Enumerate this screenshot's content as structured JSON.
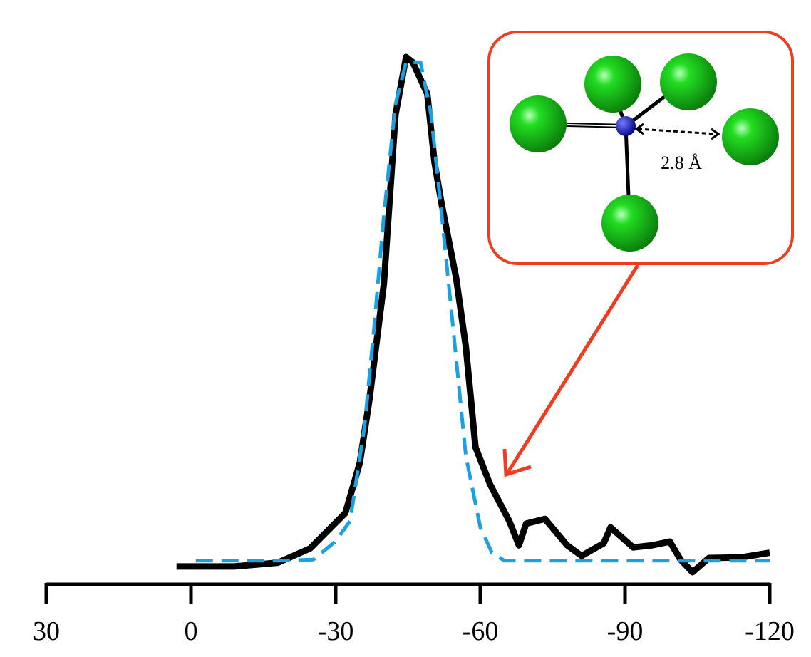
{
  "chart_data": {
    "type": "line",
    "annotation": "2.8 Å",
    "xlim": [
      30,
      -120
    ],
    "xticks": [
      30,
      0,
      -30,
      -60,
      -90,
      -120
    ],
    "ylim": [
      0,
      100
    ],
    "series": [
      {
        "color": "#000000",
        "dashed": false,
        "x": [
          3,
          -9,
          -18,
          -24.7,
          -32,
          -35,
          -37,
          -40,
          -42.4,
          -44.6,
          -46,
          -49,
          -50.5,
          -52,
          -55,
          -57,
          -59,
          -62,
          -66,
          -68,
          -69.5,
          -73.4,
          -78,
          -81,
          -85.6,
          -87,
          -91.7,
          -95.6,
          -99.3,
          -101.5,
          -104,
          -107.4,
          -114,
          -120
        ],
        "values": [
          3.4,
          3.4,
          4.1,
          6.8,
          13.5,
          23,
          35,
          57,
          89,
          100,
          99,
          93,
          80,
          72,
          58,
          45,
          26,
          19,
          12,
          7.4,
          11.5,
          12.4,
          7.4,
          5.4,
          7.8,
          10.8,
          7,
          7.4,
          8.1,
          4.7,
          2.3,
          5,
          5.1,
          6
        ]
      },
      {
        "color": "#1ba1e2",
        "dashed": true,
        "x": [
          -1,
          -18,
          -25.4,
          -29.9,
          -33,
          -36,
          -38,
          -40,
          -42.4,
          -44.6,
          -47.6,
          -49.8,
          -52,
          -54.2,
          -57,
          -60,
          -62.4,
          -65,
          -120
        ],
        "values": [
          4.5,
          4.5,
          4.7,
          8.1,
          12,
          30,
          49,
          70,
          91,
          99,
          99,
          89,
          70,
          50,
          24.3,
          10.8,
          6,
          4.5,
          4.5
        ]
      }
    ]
  }
}
